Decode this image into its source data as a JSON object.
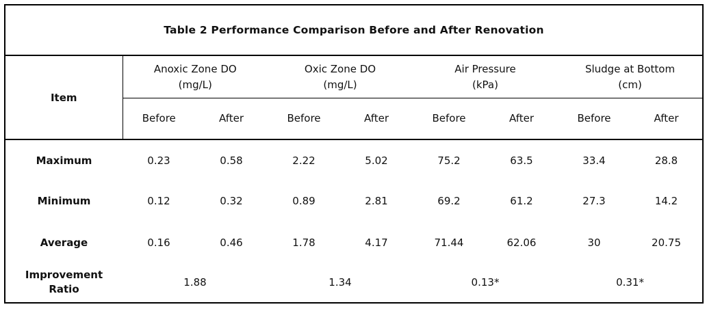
{
  "title": "Table 2 Performance Comparison Before and After Renovation",
  "table": {
    "item_header": "Item",
    "groups": [
      {
        "name": "Anoxic Zone DO",
        "unit": "(mg/L)"
      },
      {
        "name": "Oxic Zone DO",
        "unit": "(mg/L)"
      },
      {
        "name": "Air Pressure",
        "unit": "(kPa)"
      },
      {
        "name": "Sludge at Bottom",
        "unit": "(cm)"
      }
    ],
    "sub_headers": [
      "Before",
      "After",
      "Before",
      "After",
      "Before",
      "After",
      "Before",
      "After"
    ],
    "rows": [
      {
        "label": "Maximum",
        "values": [
          "0.23",
          "0.58",
          "2.22",
          "5.02",
          "75.2",
          "63.5",
          "33.4",
          "28.8"
        ]
      },
      {
        "label": "Minimum",
        "values": [
          "0.12",
          "0.32",
          "0.89",
          "2.81",
          "69.2",
          "61.2",
          "27.3",
          "14.2"
        ]
      },
      {
        "label": "Average",
        "values": [
          "0.16",
          "0.46",
          "1.78",
          "4.17",
          "71.44",
          "62.06",
          "30",
          "20.75"
        ]
      }
    ],
    "improvement_row": {
      "label": "Improvement Ratio",
      "values": [
        "1.88",
        "1.34",
        "0.13*",
        "0.31*"
      ]
    }
  },
  "colors": {
    "border": "#000000",
    "text": "#111111",
    "background": "#ffffff"
  }
}
